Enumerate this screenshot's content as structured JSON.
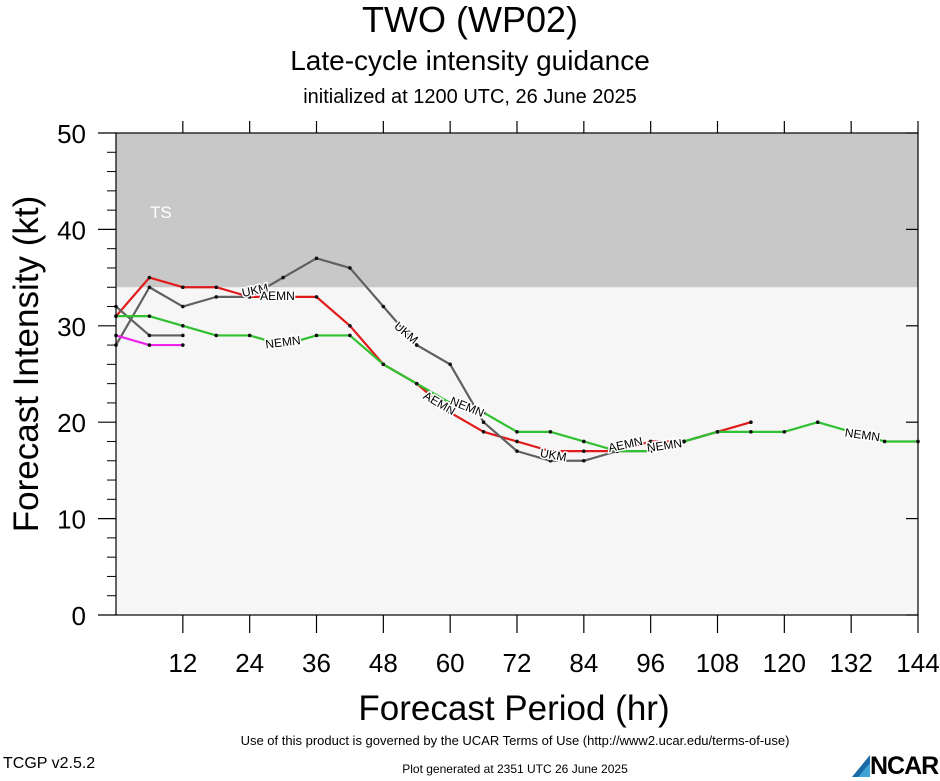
{
  "header": {
    "title": "TWO (WP02)",
    "subtitle": "Late-cycle intensity guidance",
    "initialized": "initialized at 1200 UTC, 26 June 2025"
  },
  "footer": {
    "terms": "Use of this product is governed by the UCAR Terms of Use (http://www2.ucar.edu/terms-of-use)",
    "version": "TCGP v2.5.2",
    "generated": "Plot generated at 2351 UTC   26 June 2025",
    "logo_text": "NCAR"
  },
  "chart_data": {
    "type": "line",
    "xlabel": "Forecast Period (hr)",
    "ylabel": "Forecast Intensity (kt)",
    "xlim": [
      0,
      144
    ],
    "ylim": [
      0,
      50
    ],
    "xticks": [
      "12",
      "24",
      "36",
      "48",
      "60",
      "72",
      "84",
      "96",
      "108",
      "120",
      "132",
      "144"
    ],
    "yticks": [
      "0",
      "10",
      "20",
      "30",
      "40",
      "50"
    ],
    "bands": [
      {
        "label": "TS",
        "from": 34,
        "to": 50,
        "color": "#c8c8c8"
      }
    ],
    "background_color": "#f6f6f6",
    "series": [
      {
        "color": "#e01b1b",
        "points": [
          [
            0,
            31
          ],
          [
            6,
            35
          ],
          [
            12,
            34
          ],
          [
            18,
            34
          ],
          [
            24,
            33
          ],
          [
            30,
            33
          ],
          [
            36,
            33
          ],
          [
            42,
            30
          ],
          [
            48,
            26
          ],
          [
            54,
            24
          ],
          [
            60,
            21
          ],
          [
            66,
            19
          ],
          [
            72,
            18
          ],
          [
            78,
            17
          ],
          [
            84,
            17
          ],
          [
            90,
            17
          ],
          [
            96,
            18
          ],
          [
            102,
            18
          ],
          [
            108,
            19
          ],
          [
            114,
            20
          ]
        ]
      },
      {
        "color": "#606060",
        "points": [
          [
            0,
            28
          ],
          [
            6,
            34
          ],
          [
            12,
            32
          ],
          [
            18,
            33
          ],
          [
            24,
            33
          ],
          [
            30,
            35
          ],
          [
            36,
            37
          ],
          [
            42,
            36
          ],
          [
            48,
            32
          ],
          [
            54,
            28
          ],
          [
            60,
            26
          ],
          [
            66,
            20
          ],
          [
            72,
            17
          ],
          [
            78,
            16
          ],
          [
            84,
            16
          ],
          [
            90,
            17
          ],
          [
            96,
            17
          ],
          [
            102,
            18
          ],
          [
            108,
            19
          ]
        ]
      },
      {
        "color": "#606060",
        "points": [
          [
            0,
            32
          ],
          [
            6,
            29
          ],
          [
            12,
            29
          ]
        ]
      },
      {
        "color": "#30c030",
        "points": [
          [
            0,
            31
          ],
          [
            6,
            31
          ],
          [
            12,
            30
          ],
          [
            18,
            29
          ],
          [
            24,
            29
          ],
          [
            30,
            28
          ],
          [
            36,
            29
          ],
          [
            42,
            29
          ],
          [
            48,
            26
          ],
          [
            54,
            24
          ],
          [
            60,
            22
          ],
          [
            66,
            21
          ],
          [
            72,
            19
          ],
          [
            78,
            19
          ],
          [
            84,
            18
          ],
          [
            90,
            17
          ],
          [
            96,
            17
          ],
          [
            102,
            18
          ],
          [
            108,
            19
          ],
          [
            114,
            19
          ],
          [
            120,
            19
          ],
          [
            126,
            20
          ],
          [
            132,
            19
          ],
          [
            138,
            18
          ],
          [
            144,
            18
          ]
        ]
      },
      {
        "color": "#ee22ee",
        "points": [
          [
            0,
            29
          ],
          [
            6,
            28
          ],
          [
            12,
            28
          ]
        ]
      }
    ],
    "annotations": [
      {
        "text": "UKM",
        "x": 25,
        "y": 33.6,
        "angle": -12
      },
      {
        "text": "AEMN",
        "x": 29,
        "y": 33.0,
        "angle": 0
      },
      {
        "text": "NEMN",
        "x": 30,
        "y": 28.2,
        "angle": -7
      },
      {
        "text": "UKM",
        "x": 52,
        "y": 29.2,
        "angle": 40
      },
      {
        "text": "AEMN",
        "x": 58,
        "y": 21.9,
        "angle": 30
      },
      {
        "text": "NEMN",
        "x": 63,
        "y": 21.5,
        "angle": 22
      },
      {
        "text": "UKM",
        "x": 78.5,
        "y": 16.5,
        "angle": 10
      },
      {
        "text": "AEMN",
        "x": 91.5,
        "y": 17.6,
        "angle": -12
      },
      {
        "text": "NEMN",
        "x": 98.5,
        "y": 17.5,
        "angle": -8
      },
      {
        "text": "NEMN",
        "x": 134,
        "y": 18.6,
        "angle": 8
      }
    ]
  }
}
